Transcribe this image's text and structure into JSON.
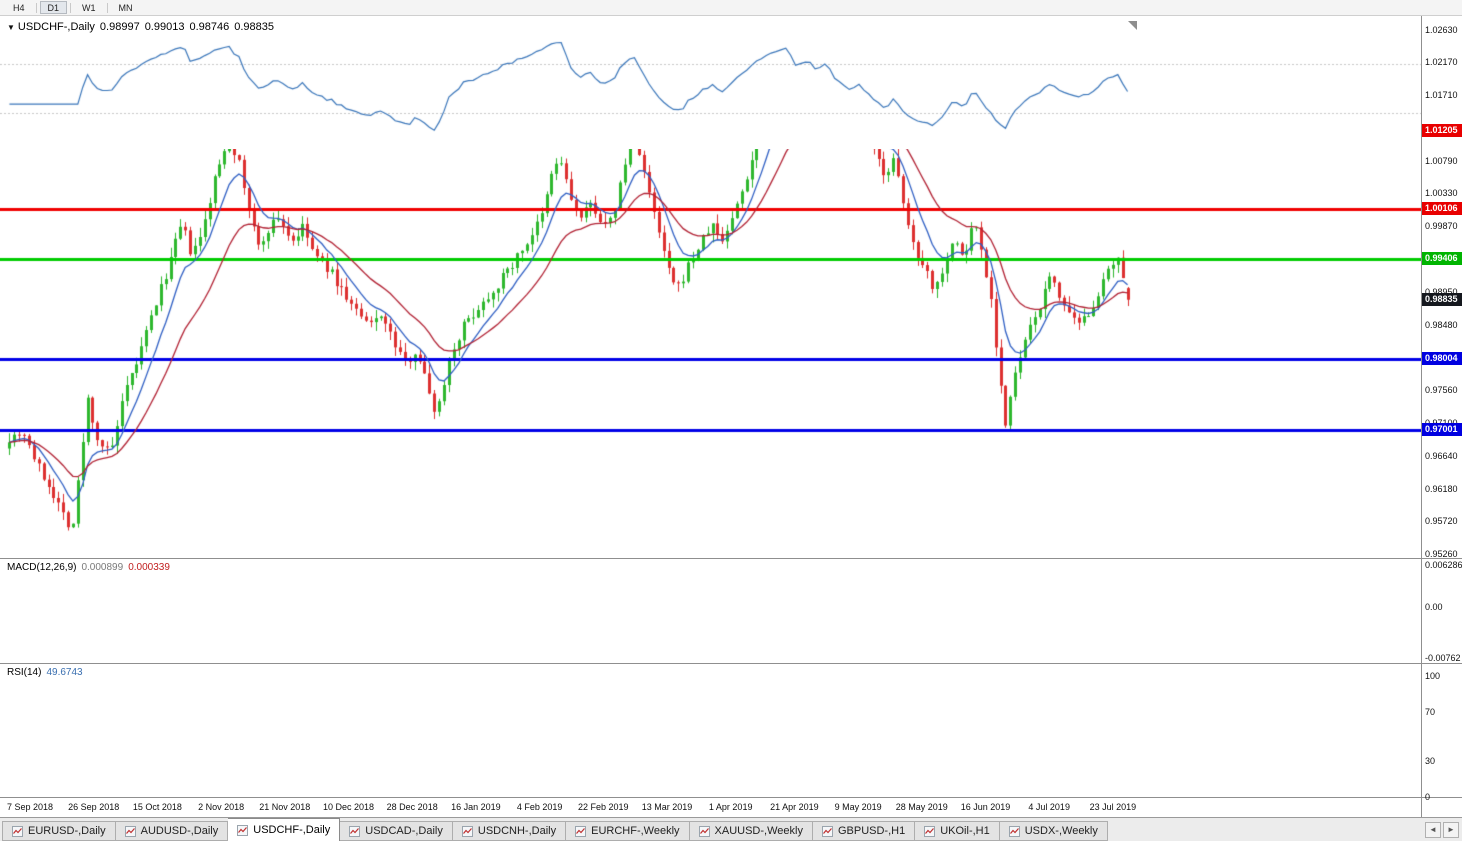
{
  "icons": {
    "collapse_triangle": "▼",
    "tab_scroll_left": "◄",
    "tab_scroll_right": "►"
  },
  "window": {
    "timeframes": [
      "H4",
      "D1",
      "W1",
      "MN"
    ],
    "active_timeframe": "D1"
  },
  "chart": {
    "title": "USDCHF-,Daily",
    "open": "0.98997",
    "high": "0.99013",
    "low": "0.98746",
    "close": "0.98835",
    "colors": {
      "bull": "#2eb82e",
      "bear": "#dd3030",
      "ma_fast": "#2f5fc4",
      "ma_slow": "#b22234"
    },
    "y_axis": {
      "labels": [
        "1.02630",
        "1.02170",
        "1.01710",
        "1.00790",
        "1.00330",
        "0.99870",
        "0.98950",
        "0.98480",
        "0.97560",
        "0.97100",
        "0.96640",
        "0.96180",
        "0.95720",
        "0.95260"
      ],
      "price_tags": [
        {
          "value": 1.01205,
          "text": "1.01205",
          "color": "#e80000",
          "text_color": "#ffffff"
        },
        {
          "value": 1.00106,
          "text": "1.00106",
          "color": "#e80000",
          "text_color": "#ffffff"
        },
        {
          "value": 0.99406,
          "text": "0.99406",
          "color": "#00b400",
          "text_color": "#ffffff"
        },
        {
          "value": 0.98835,
          "text": "0.98835",
          "color": "#15181e",
          "text_color": "#ffffff"
        },
        {
          "value": 0.98004,
          "text": "0.98004",
          "color": "#0000e0",
          "text_color": "#ffffff"
        },
        {
          "value": 0.97001,
          "text": "0.97001",
          "color": "#0000e0",
          "text_color": "#ffffff"
        }
      ]
    },
    "hlines": [
      {
        "value": 1.01205,
        "color": "#f00000",
        "width": 3
      },
      {
        "value": 1.00106,
        "color": "#f00000",
        "width": 3
      },
      {
        "value": 0.99406,
        "color": "#00cc00",
        "width": 3
      },
      {
        "value": 0.98004,
        "color": "#0000e8",
        "width": 3
      },
      {
        "value": 0.97001,
        "color": "#0000e8",
        "width": 3
      }
    ]
  },
  "chart_data": {
    "type": "candlestick",
    "symbol": "USDCHF",
    "period": "Daily",
    "candle_count": 230,
    "seed": 7,
    "ylim": [
      0.95206,
      1.02821
    ],
    "overlays": [
      {
        "name": "ma-fast",
        "period": 8,
        "color": "#2f5fc4"
      },
      {
        "name": "ma-slow",
        "period": 20,
        "color": "#b22234"
      }
    ],
    "price_waypoints": [
      [
        0.0,
        0.969
      ],
      [
        0.012,
        0.97
      ],
      [
        0.025,
        0.965
      ],
      [
        0.038,
        0.9615
      ],
      [
        0.049,
        0.958
      ],
      [
        0.056,
        0.956
      ],
      [
        0.063,
        0.965
      ],
      [
        0.07,
        0.9745
      ],
      [
        0.078,
        0.969
      ],
      [
        0.09,
        0.9665
      ],
      [
        0.102,
        0.9745
      ],
      [
        0.117,
        0.981
      ],
      [
        0.129,
        0.987
      ],
      [
        0.141,
        0.9925
      ],
      [
        0.154,
        0.999
      ],
      [
        0.163,
        0.9945
      ],
      [
        0.172,
        0.9975
      ],
      [
        0.183,
        1.005
      ],
      [
        0.196,
        1.0115
      ],
      [
        0.205,
        1.0075
      ],
      [
        0.214,
        1.001
      ],
      [
        0.223,
        0.9955
      ],
      [
        0.232,
        0.9985
      ],
      [
        0.241,
        1.0
      ],
      [
        0.252,
        0.9965
      ],
      [
        0.263,
        0.9985
      ],
      [
        0.273,
        0.9945
      ],
      [
        0.286,
        0.9925
      ],
      [
        0.298,
        0.9895
      ],
      [
        0.311,
        0.9865
      ],
      [
        0.321,
        0.9845
      ],
      [
        0.332,
        0.9865
      ],
      [
        0.343,
        0.9825
      ],
      [
        0.354,
        0.9795
      ],
      [
        0.364,
        0.9815
      ],
      [
        0.375,
        0.9755
      ],
      [
        0.382,
        0.9722
      ],
      [
        0.393,
        0.98
      ],
      [
        0.405,
        0.9845
      ],
      [
        0.419,
        0.9872
      ],
      [
        0.434,
        0.99
      ],
      [
        0.448,
        0.993
      ],
      [
        0.462,
        0.9962
      ],
      [
        0.476,
        1.0
      ],
      [
        0.485,
        1.006
      ],
      [
        0.492,
        1.0085
      ],
      [
        0.501,
        1.003
      ],
      [
        0.51,
        0.9995
      ],
      [
        0.521,
        1.002
      ],
      [
        0.532,
        0.9985
      ],
      [
        0.539,
        0.9995
      ],
      [
        0.548,
        1.006
      ],
      [
        0.557,
        1.0115
      ],
      [
        0.564,
        1.009
      ],
      [
        0.572,
        1.003
      ],
      [
        0.581,
        0.9975
      ],
      [
        0.59,
        0.992
      ],
      [
        0.597,
        0.9895
      ],
      [
        0.608,
        0.9935
      ],
      [
        0.619,
        0.9965
      ],
      [
        0.628,
        0.999
      ],
      [
        0.637,
        0.9965
      ],
      [
        0.647,
        1.0
      ],
      [
        0.66,
        1.006
      ],
      [
        0.672,
        1.013
      ],
      [
        0.685,
        1.0195
      ],
      [
        0.695,
        1.0228
      ],
      [
        0.704,
        1.018
      ],
      [
        0.713,
        1.0205
      ],
      [
        0.722,
        1.019
      ],
      [
        0.731,
        1.0212
      ],
      [
        0.742,
        1.016
      ],
      [
        0.752,
        1.0125
      ],
      [
        0.761,
        1.015
      ],
      [
        0.772,
        1.0095
      ],
      [
        0.783,
        1.006
      ],
      [
        0.791,
        1.008
      ],
      [
        0.8,
        1.001
      ],
      [
        0.809,
        0.9955
      ],
      [
        0.818,
        0.9935
      ],
      [
        0.827,
        0.9895
      ],
      [
        0.836,
        0.9935
      ],
      [
        0.845,
        0.9968
      ],
      [
        0.854,
        0.994
      ],
      [
        0.863,
        1.0
      ],
      [
        0.87,
        0.9945
      ],
      [
        0.877,
        0.9895
      ],
      [
        0.884,
        0.9795
      ],
      [
        0.891,
        0.9705
      ],
      [
        0.898,
        0.9768
      ],
      [
        0.907,
        0.982
      ],
      [
        0.916,
        0.9855
      ],
      [
        0.925,
        0.989
      ],
      [
        0.932,
        0.992
      ],
      [
        0.939,
        0.989
      ],
      [
        0.948,
        0.9858
      ],
      [
        0.957,
        0.9845
      ],
      [
        0.966,
        0.9868
      ],
      [
        0.975,
        0.9896
      ],
      [
        0.984,
        0.9925
      ],
      [
        0.991,
        0.994
      ],
      [
        0.996,
        0.9905
      ],
      [
        1.0,
        0.98835
      ]
    ]
  },
  "macd": {
    "label": "MACD(12,26,9)",
    "value_main": "0.000899",
    "value_signal": "0.000339",
    "params": {
      "fast": 12,
      "slow": 26,
      "signal": 9
    },
    "ylim": [
      -0.00838,
      0.00719
    ],
    "axis_labels": [
      {
        "value": 0.006286,
        "text": "0.006286"
      },
      {
        "value": 0,
        "text": "0.00"
      },
      {
        "value": -0.00762,
        "text": "-0.00762"
      }
    ],
    "colors": {
      "histogram": "#a0a0a0",
      "signal": "#d42222"
    }
  },
  "rsi": {
    "label": "RSI(14)",
    "value": "49.6743",
    "period": 14,
    "ylim": [
      0,
      109.84
    ],
    "levels": [
      70,
      30
    ],
    "axis_labels": [
      {
        "value": 100,
        "text": "100"
      },
      {
        "value": 70,
        "text": "70"
      },
      {
        "value": 30,
        "text": "30"
      },
      {
        "value": 0,
        "text": "0"
      }
    ],
    "color": "#3a76ba"
  },
  "x_axis": {
    "labels": [
      "7 Sep 2018",
      "26 Sep 2018",
      "15 Oct 2018",
      "2 Nov 2018",
      "21 Nov 2018",
      "10 Dec 2018",
      "28 Dec 2018",
      "16 Jan 2019",
      "4 Feb 2019",
      "22 Feb 2019",
      "13 Mar 2019",
      "1 Apr 2019",
      "21 Apr 2019",
      "9 May 2019",
      "28 May 2019",
      "16 Jun 2019",
      "4 Jul 2019",
      "23 Jul 2019"
    ]
  },
  "tabs": {
    "items": [
      "EURUSD-,Daily",
      "AUDUSD-,Daily",
      "USDCHF-,Daily",
      "USDCAD-,Daily",
      "USDCNH-,Daily",
      "EURCHF-,Weekly",
      "XAUUSD-,Weekly",
      "GBPUSD-,H1",
      "UKOil-,H1",
      "USDX-,Weekly"
    ],
    "active": "USDCHF-,Daily"
  }
}
